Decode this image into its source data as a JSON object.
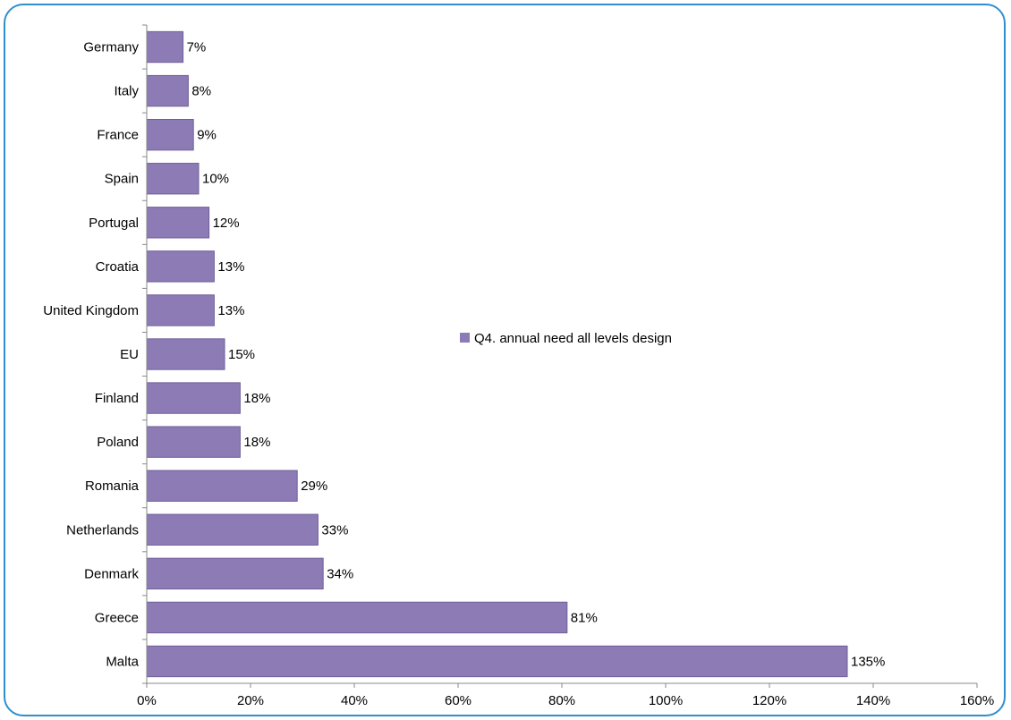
{
  "chart_data": {
    "type": "bar",
    "orientation": "horizontal",
    "title": "",
    "xlabel": "",
    "ylabel": "",
    "categories": [
      "Germany",
      "Italy",
      "France",
      "Spain",
      "Portugal",
      "Croatia",
      "United Kingdom",
      "EU",
      "Finland",
      "Poland",
      "Romania",
      "Netherlands",
      "Denmark",
      "Greece",
      "Malta"
    ],
    "series": [
      {
        "name": "Q4. annual need all levels design",
        "values": [
          7,
          8,
          9,
          10,
          12,
          13,
          13,
          15,
          18,
          18,
          29,
          33,
          34,
          81,
          135
        ],
        "labels": [
          "7%",
          "8%",
          "9%",
          "10%",
          "12%",
          "13%",
          "13%",
          "15%",
          "18%",
          "18%",
          "29%",
          "33%",
          "34%",
          "81%",
          "135%"
        ]
      }
    ],
    "xlim": [
      0,
      160
    ],
    "x_ticks": [
      0,
      20,
      40,
      60,
      80,
      100,
      120,
      140,
      160
    ],
    "x_tick_labels": [
      "0%",
      "20%",
      "40%",
      "60%",
      "80%",
      "100%",
      "120%",
      "140%",
      "160%"
    ],
    "grid": false,
    "legend_position": "inside-center",
    "colors": {
      "bar": "#8d7bb5",
      "bar_stroke": "#6f5e98",
      "axis": "#888888",
      "frame": "#2e8fd0"
    }
  }
}
